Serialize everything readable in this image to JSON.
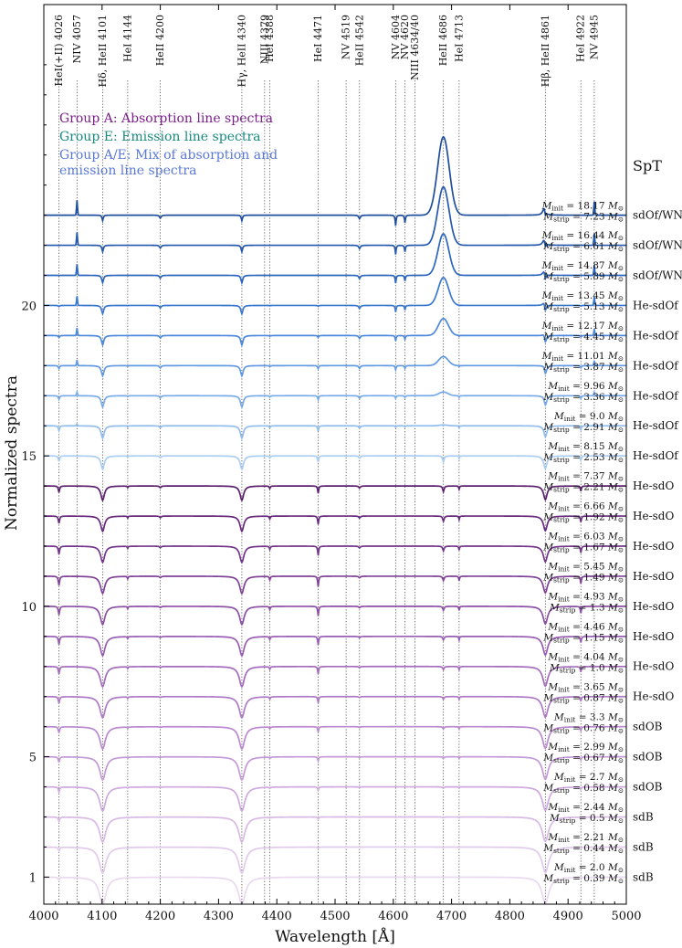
{
  "chart_data": {
    "type": "line",
    "xlabel": "Wavelength [Å]",
    "ylabel": "Normalized spectra",
    "xlim": [
      4000,
      5000
    ],
    "ylim": [
      0.1,
      30.0
    ],
    "x_ticks": [
      4000,
      4100,
      4200,
      4300,
      4400,
      4500,
      4600,
      4700,
      4800,
      4900,
      5000
    ],
    "y_ticks": [
      1,
      5,
      10,
      15,
      20
    ],
    "spt_header": "SpT",
    "legend": [
      {
        "text": "Group A: Absorption line spectra",
        "color": "#7b1f8a"
      },
      {
        "text": "Group E: Emission line spectra",
        "color": "#17897e"
      },
      {
        "text": "Group A/E: Mix of absorption and emission line spectra",
        "color": "#5a78d6"
      }
    ],
    "lines": [
      {
        "label": "HeI(+II) 4026",
        "wl": 4026
      },
      {
        "label": "NIV 4057",
        "wl": 4057
      },
      {
        "label": "Hδ, HeII 4101",
        "wl": 4101
      },
      {
        "label": "HeI 4144",
        "wl": 4144
      },
      {
        "label": "HeII 4200",
        "wl": 4200
      },
      {
        "label": "Hγ, HeII 4340",
        "wl": 4340
      },
      {
        "label": "NIII 4379",
        "wl": 4379
      },
      {
        "label": "HeI 4388",
        "wl": 4388
      },
      {
        "label": "HeI 4471",
        "wl": 4471
      },
      {
        "label": "NV 4519",
        "wl": 4519
      },
      {
        "label": "HeII 4542",
        "wl": 4542
      },
      {
        "label": "NV 4604",
        "wl": 4604
      },
      {
        "label": "NV 4620",
        "wl": 4620
      },
      {
        "label": "NIII 4634/40",
        "wl": 4637
      },
      {
        "label": "HeII 4686",
        "wl": 4686
      },
      {
        "label": "HeI 4713",
        "wl": 4713
      },
      {
        "label": "Hβ, HeII 4861",
        "wl": 4861
      },
      {
        "label": "HeI 4922",
        "wl": 4922
      },
      {
        "label": "NV 4945",
        "wl": 4945
      }
    ],
    "series": [
      {
        "spt": "sdOf/WN",
        "minit": "18.17",
        "mstrip": "7.23",
        "offset": 23.0,
        "color": "#1f4e9e",
        "group": "E"
      },
      {
        "spt": "sdOf/WN",
        "minit": "16.44",
        "mstrip": "6.61",
        "offset": 22.0,
        "color": "#2459ae",
        "group": "E"
      },
      {
        "spt": "sdOf/WN",
        "minit": "14.87",
        "mstrip": "5.89",
        "offset": 21.0,
        "color": "#2b66bf",
        "group": "E"
      },
      {
        "spt": "He-sdOf",
        "minit": "13.45",
        "mstrip": "5.13",
        "offset": 20.0,
        "color": "#3a78d0",
        "group": "A/E"
      },
      {
        "spt": "He-sdOf",
        "minit": "12.17",
        "mstrip": "4.45",
        "offset": 19.0,
        "color": "#4c88db",
        "group": "A/E"
      },
      {
        "spt": "He-sdOf",
        "minit": "11.01",
        "mstrip": "3.87",
        "offset": 18.0,
        "color": "#6199e3",
        "group": "A/E"
      },
      {
        "spt": "He-sdOf",
        "minit": "9.96",
        "mstrip": "3.36",
        "offset": 17.0,
        "color": "#78aae8",
        "group": "A/E"
      },
      {
        "spt": "He-sdOf",
        "minit": "9.0",
        "mstrip": "2.91",
        "offset": 16.0,
        "color": "#91bcee",
        "group": "A/E"
      },
      {
        "spt": "He-sdOf",
        "minit": "8.15",
        "mstrip": "2.53",
        "offset": 15.0,
        "color": "#aacdf3",
        "group": "A/E"
      },
      {
        "spt": "He-sdO",
        "minit": "7.37",
        "mstrip": "2.21",
        "offset": 14.0,
        "color": "#5b1f6e",
        "group": "A"
      },
      {
        "spt": "He-sdO",
        "minit": "6.66",
        "mstrip": "1.92",
        "offset": 13.0,
        "color": "#672a7c",
        "group": "A"
      },
      {
        "spt": "He-sdO",
        "minit": "6.03",
        "mstrip": "1.67",
        "offset": 12.0,
        "color": "#73368a",
        "group": "A"
      },
      {
        "spt": "He-sdO",
        "minit": "5.45",
        "mstrip": "1.49",
        "offset": 11.0,
        "color": "#804298",
        "group": "A"
      },
      {
        "spt": "He-sdO",
        "minit": "4.93",
        "mstrip": "1.3",
        "offset": 10.0,
        "color": "#8c4fa6",
        "group": "A"
      },
      {
        "spt": "He-sdO",
        "minit": "4.46",
        "mstrip": "1.15",
        "offset": 9.0,
        "color": "#985db2",
        "group": "A"
      },
      {
        "spt": "He-sdO",
        "minit": "4.04",
        "mstrip": "1.0",
        "offset": 8.0,
        "color": "#a46bbd",
        "group": "A"
      },
      {
        "spt": "He-sdO",
        "minit": "3.65",
        "mstrip": "0.87",
        "offset": 7.0,
        "color": "#af7ac6",
        "group": "A"
      },
      {
        "spt": "sdOB",
        "minit": "3.3",
        "mstrip": "0.76",
        "offset": 6.0,
        "color": "#ba89cf",
        "group": "A"
      },
      {
        "spt": "sdOB",
        "minit": "2.99",
        "mstrip": "0.67",
        "offset": 5.0,
        "color": "#c499d7",
        "group": "A"
      },
      {
        "spt": "sdOB",
        "minit": "2.7",
        "mstrip": "0.58",
        "offset": 4.0,
        "color": "#cea9de",
        "group": "A"
      },
      {
        "spt": "sdB",
        "minit": "2.44",
        "mstrip": "0.5",
        "offset": 3.0,
        "color": "#d8b9e5",
        "group": "A"
      },
      {
        "spt": "sdB",
        "minit": "2.21",
        "mstrip": "0.44",
        "offset": 2.0,
        "color": "#e1c9eb",
        "group": "A"
      },
      {
        "spt": "sdB",
        "minit": "2.0",
        "mstrip": "0.39",
        "offset": 1.0,
        "color": "#e9d8f0",
        "group": "A"
      }
    ]
  }
}
